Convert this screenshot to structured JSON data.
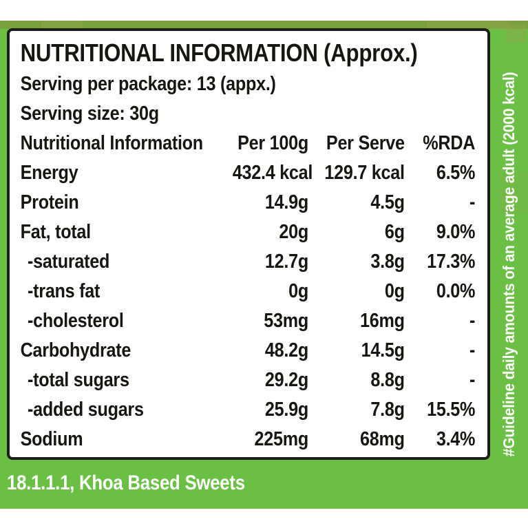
{
  "colors": {
    "band_green": "#6cbf45",
    "olive_accent": "#7d9a3d",
    "panel_bg": "#ffffff",
    "panel_border": "#1d1d1a",
    "text": "#161613",
    "inverse_text": "#ffffff"
  },
  "panel": {
    "title": "NUTRITIONAL INFORMATION (Approx.)",
    "serving_per_package": "Serving per package: 13 (appx.)",
    "serving_size": "Serving size: 30g"
  },
  "table": {
    "headers": [
      "Nutritional Information",
      "Per 100g",
      "Per Serve",
      "%RDA"
    ],
    "rows": [
      {
        "label": "Energy",
        "per_100g": "432.4 kcal",
        "per_serve": "129.7 kcal",
        "rda": "6.5%"
      },
      {
        "label": "Protein",
        "per_100g": "14.9g",
        "per_serve": "4.5g",
        "rda": "-"
      },
      {
        "label": "Fat, total",
        "per_100g": "20g",
        "per_serve": "6g",
        "rda": "9.0%"
      },
      {
        "label": "-saturated",
        "per_100g": "12.7g",
        "per_serve": "3.8g",
        "rda": "17.3%"
      },
      {
        "label": "-trans fat",
        "per_100g": "0g",
        "per_serve": "0g",
        "rda": "0.0%"
      },
      {
        "label": "-cholesterol",
        "per_100g": "53mg",
        "per_serve": "16mg",
        "rda": "-"
      },
      {
        "label": "Carbohydrate",
        "per_100g": "48.2g",
        "per_serve": "14.5g",
        "rda": "-"
      },
      {
        "label": "-total sugars",
        "per_100g": "29.2g",
        "per_serve": "8.8g",
        "rda": "-"
      },
      {
        "label": "-added sugars",
        "per_100g": "25.9g",
        "per_serve": "7.8g",
        "rda": "15.5%"
      },
      {
        "label": "Sodium",
        "per_100g": "225mg",
        "per_serve": "68mg",
        "rda": "3.4%"
      }
    ]
  },
  "side_note": "#Guideline daily amounts of an average adult (2000 kcal)",
  "footer": "18.1.1.1, Khoa Based Sweets"
}
